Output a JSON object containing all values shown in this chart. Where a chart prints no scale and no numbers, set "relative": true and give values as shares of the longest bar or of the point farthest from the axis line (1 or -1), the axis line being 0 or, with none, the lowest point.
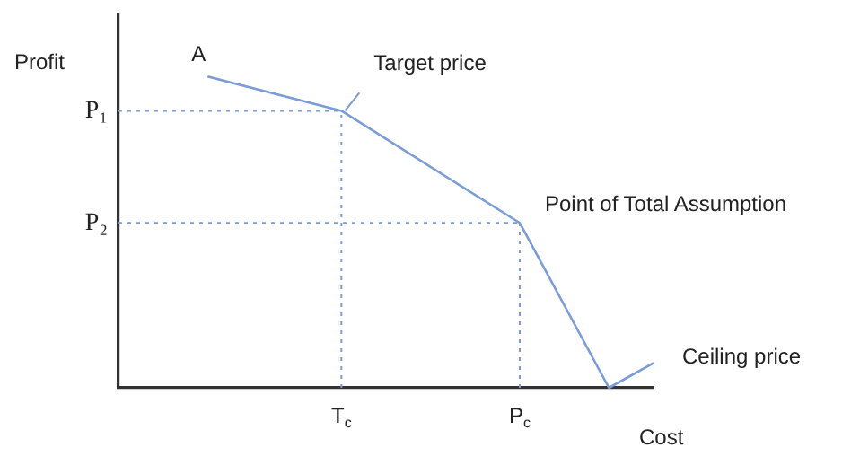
{
  "chart_data": {
    "type": "line",
    "relative": true,
    "xlabel": "Cost",
    "ylabel": "Profit",
    "categories": [
      null,
      null,
      null,
      null,
      null,
      null,
      null,
      null,
      null,
      null,
      "T$_{c}$",
      null,
      null,
      null,
      null,
      null,
      null,
      null,
      "P$_{c}$",
      null,
      null,
      null,
      null,
      null,
      null
    ],
    "values": [
      null,
      null,
      null,
      null,
      1,
      null,
      null,
      null,
      null,
      null,
      0.89,
      null,
      null,
      null,
      null,
      null,
      null,
      null,
      0.53,
      null,
      null,
      null,
      0,
      null,
      0.08
    ],
    "color": "#7b9cd6",
    "marker": "none",
    "line_style": "solid",
    "legend": false,
    "grid": false,
    "ref_lines": [
      {
        "axis": "y",
        "value": 0.89,
        "label": "P₁",
        "color": "#7b9cd6",
        "line_style": "dotted"
      },
      {
        "axis": "y",
        "value": 0.53,
        "label": "P₂",
        "color": "#7b9cd6",
        "line_style": "dotted"
      },
      {
        "axis": "x",
        "value": "T$_{c}$",
        "color": "#7b9cd6",
        "line_style": "dotted"
      },
      {
        "axis": "x",
        "value": "P$_{c}$",
        "color": "#7b9cd6",
        "line_style": "dotted"
      }
    ],
    "annotations": [
      "A",
      {
        "text": "Target price",
        "x": "T$_{c}$",
        "y": 0.89
      },
      {
        "text": "Point of Total Assumption",
        "x": "P$_{c}$",
        "y": 0.53
      },
      "Ceiling price"
    ]
  }
}
